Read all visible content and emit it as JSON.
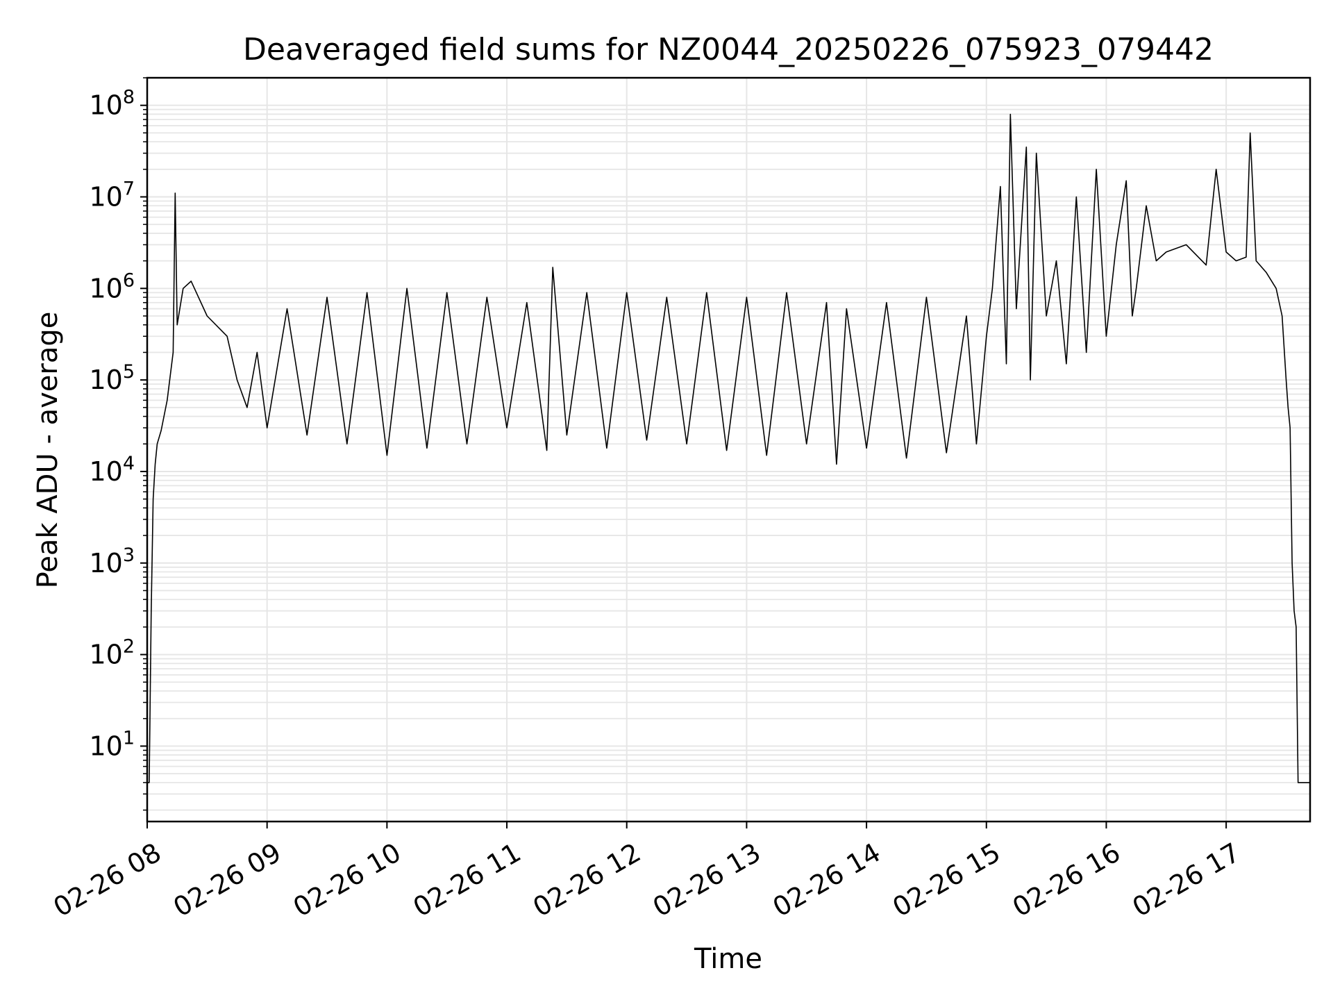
{
  "chart_data": {
    "type": "line",
    "title": "Deaveraged field sums for NZ0044_20250226_075923_079442",
    "xlabel": "Time",
    "ylabel": "Peak ADU - average",
    "yscale": "log",
    "ylim": [
      1.5,
      200000000
    ],
    "xlim": [
      "2025-02-26 08:00",
      "2025-02-26 17:42"
    ],
    "grid": true,
    "line_color": "#000000",
    "grid_color": "#e6e6e6",
    "x_ticks": [
      {
        "value": "2025-02-26 08:00",
        "label": "02-26 08"
      },
      {
        "value": "2025-02-26 09:00",
        "label": "02-26 09"
      },
      {
        "value": "2025-02-26 10:00",
        "label": "02-26 10"
      },
      {
        "value": "2025-02-26 11:00",
        "label": "02-26 11"
      },
      {
        "value": "2025-02-26 12:00",
        "label": "02-26 12"
      },
      {
        "value": "2025-02-26 13:00",
        "label": "02-26 13"
      },
      {
        "value": "2025-02-26 14:00",
        "label": "02-26 14"
      },
      {
        "value": "2025-02-26 15:00",
        "label": "02-26 15"
      },
      {
        "value": "2025-02-26 16:00",
        "label": "02-26 16"
      },
      {
        "value": "2025-02-26 17:00",
        "label": "02-26 17"
      }
    ],
    "y_ticks": [
      {
        "value": 10,
        "base": "10",
        "exp": "1"
      },
      {
        "value": 100,
        "base": "10",
        "exp": "2"
      },
      {
        "value": 1000,
        "base": "10",
        "exp": "3"
      },
      {
        "value": 10000,
        "base": "10",
        "exp": "4"
      },
      {
        "value": 100000,
        "base": "10",
        "exp": "5"
      },
      {
        "value": 1000000,
        "base": "10",
        "exp": "6"
      },
      {
        "value": 10000000,
        "base": "10",
        "exp": "7"
      },
      {
        "value": 100000000,
        "base": "10",
        "exp": "8"
      }
    ],
    "series": [
      {
        "x": [
          "2025-02-26 08:00",
          "2025-02-26 08:01",
          "2025-02-26 08:02",
          "2025-02-26 08:03",
          "2025-02-26 08:04",
          "2025-02-26 08:05",
          "2025-02-26 08:07",
          "2025-02-26 08:10",
          "2025-02-26 08:13",
          "2025-02-26 08:14",
          "2025-02-26 08:15",
          "2025-02-26 08:18",
          "2025-02-26 08:22",
          "2025-02-26 08:30",
          "2025-02-26 08:40",
          "2025-02-26 08:45",
          "2025-02-26 08:50",
          "2025-02-26 08:55",
          "2025-02-26 09:00",
          "2025-02-26 09:10",
          "2025-02-26 09:20",
          "2025-02-26 09:30",
          "2025-02-26 09:40",
          "2025-02-26 09:50",
          "2025-02-26 10:00",
          "2025-02-26 10:10",
          "2025-02-26 10:20",
          "2025-02-26 10:30",
          "2025-02-26 10:40",
          "2025-02-26 10:50",
          "2025-02-26 11:00",
          "2025-02-26 11:10",
          "2025-02-26 11:20",
          "2025-02-26 11:23",
          "2025-02-26 11:30",
          "2025-02-26 11:40",
          "2025-02-26 11:50",
          "2025-02-26 12:00",
          "2025-02-26 12:10",
          "2025-02-26 12:20",
          "2025-02-26 12:30",
          "2025-02-26 12:40",
          "2025-02-26 12:50",
          "2025-02-26 13:00",
          "2025-02-26 13:10",
          "2025-02-26 13:20",
          "2025-02-26 13:30",
          "2025-02-26 13:40",
          "2025-02-26 13:45",
          "2025-02-26 13:50",
          "2025-02-26 14:00",
          "2025-02-26 14:10",
          "2025-02-26 14:20",
          "2025-02-26 14:30",
          "2025-02-26 14:40",
          "2025-02-26 14:50",
          "2025-02-26 14:55",
          "2025-02-26 15:00",
          "2025-02-26 15:03",
          "2025-02-26 15:07",
          "2025-02-26 15:10",
          "2025-02-26 15:12",
          "2025-02-26 15:15",
          "2025-02-26 15:20",
          "2025-02-26 15:22",
          "2025-02-26 15:25",
          "2025-02-26 15:30",
          "2025-02-26 15:35",
          "2025-02-26 15:40",
          "2025-02-26 15:45",
          "2025-02-26 15:50",
          "2025-02-26 15:55",
          "2025-02-26 16:00",
          "2025-02-26 16:05",
          "2025-02-26 16:10",
          "2025-02-26 16:13",
          "2025-02-26 16:15",
          "2025-02-26 16:20",
          "2025-02-26 16:25",
          "2025-02-26 16:30",
          "2025-02-26 16:40",
          "2025-02-26 16:50",
          "2025-02-26 16:55",
          "2025-02-26 17:00",
          "2025-02-26 17:05",
          "2025-02-26 17:10",
          "2025-02-26 17:12",
          "2025-02-26 17:15",
          "2025-02-26 17:20",
          "2025-02-26 17:25",
          "2025-02-26 17:28",
          "2025-02-26 17:30",
          "2025-02-26 17:31",
          "2025-02-26 17:32",
          "2025-02-26 17:33",
          "2025-02-26 17:34",
          "2025-02-26 17:35",
          "2025-02-26 17:36",
          "2025-02-26 17:37",
          "2025-02-26 17:38",
          "2025-02-26 17:40",
          "2025-02-26 17:42"
        ],
        "y": [
          4,
          4,
          300,
          5000,
          12000,
          20000,
          28000,
          60000,
          200000,
          11000000,
          400000,
          1000000,
          1200000,
          500000,
          300000,
          100000,
          50000,
          200000,
          30000,
          600000,
          25000,
          800000,
          20000,
          900000,
          15000,
          1000000,
          18000,
          900000,
          20000,
          800000,
          30000,
          700000,
          17000,
          1700000,
          25000,
          900000,
          18000,
          900000,
          22000,
          800000,
          20000,
          900000,
          17000,
          800000,
          15000,
          900000,
          20000,
          700000,
          12000,
          600000,
          18000,
          700000,
          14000,
          800000,
          16000,
          500000,
          20000,
          300000,
          1000000,
          13000000,
          150000,
          80000000,
          600000,
          35000000,
          100000,
          30000000,
          500000,
          2000000,
          150000,
          10000000,
          200000,
          20000000,
          300000,
          3000000,
          15000000,
          500000,
          1000000,
          8000000,
          2000000,
          2500000,
          3000000,
          1800000,
          20000000,
          2500000,
          2000000,
          2200000,
          50000000,
          2000000,
          1500000,
          1000000,
          500000,
          100000,
          50000,
          30000,
          1000,
          300,
          200,
          4,
          4,
          4,
          4,
          4
        ]
      }
    ]
  }
}
